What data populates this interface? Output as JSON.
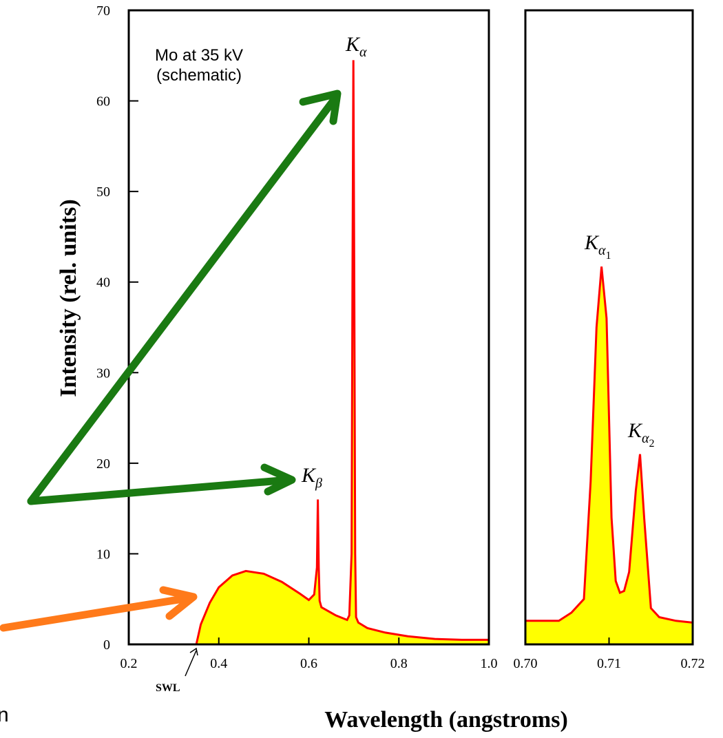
{
  "chart_data": [
    {
      "type": "area",
      "annotation": [
        "Mo at 35 kV",
        "(schematic)"
      ],
      "ylabel": "Intensity (rel. units)",
      "xlim": [
        0.2,
        1.0
      ],
      "ylim": [
        0,
        70
      ],
      "x_ticks": [
        "0.2",
        "0.4",
        "0.6",
        "0.8",
        "1.0"
      ],
      "y_ticks": [
        "0",
        "10",
        "20",
        "30",
        "40",
        "50",
        "60",
        "70"
      ],
      "series": [
        {
          "x": [
            0.35,
            0.36,
            0.38,
            0.4,
            0.43,
            0.46,
            0.5,
            0.54,
            0.58,
            0.6,
            0.612,
            0.618,
            0.62,
            0.622,
            0.624,
            0.628,
            0.635,
            0.66,
            0.685,
            0.69,
            0.695,
            0.697,
            0.699,
            0.701,
            0.703,
            0.705,
            0.71,
            0.73,
            0.77,
            0.82,
            0.88,
            0.94,
            1.0
          ],
          "y": [
            0,
            2.2,
            4.6,
            6.3,
            7.6,
            8.1,
            7.8,
            6.9,
            5.6,
            4.9,
            5.5,
            8.5,
            16.0,
            8.5,
            4.8,
            4.1,
            3.9,
            3.2,
            2.7,
            3.2,
            10.0,
            40.0,
            64.5,
            40.0,
            10.0,
            3.0,
            2.4,
            1.8,
            1.3,
            0.9,
            0.6,
            0.5,
            0.5
          ]
        }
      ],
      "peak_labels": [
        {
          "symbol": "K",
          "sub": "α",
          "subsub": "",
          "x": 0.7
        },
        {
          "symbol": "K",
          "sub": "β",
          "subsub": "",
          "x": 0.62
        }
      ],
      "swl_label": "SWL",
      "swl_x": 0.35
    },
    {
      "type": "area",
      "xlim": [
        0.7,
        0.72
      ],
      "ylim": [
        0,
        70
      ],
      "x_ticks": [
        "0.70",
        "0.71",
        "0.72"
      ],
      "series": [
        {
          "x": [
            0.7,
            0.702,
            0.704,
            0.7055,
            0.707,
            0.7078,
            0.7085,
            0.7091,
            0.7097,
            0.7103,
            0.7108,
            0.7113,
            0.7118,
            0.7124,
            0.7132,
            0.7137,
            0.7142,
            0.715,
            0.716,
            0.718,
            0.72
          ],
          "y": [
            2.6,
            2.6,
            2.6,
            3.5,
            5.0,
            18.0,
            35.0,
            41.7,
            36.0,
            14.0,
            7.0,
            5.7,
            5.9,
            8.0,
            17.0,
            21.0,
            14.0,
            4.0,
            3.0,
            2.6,
            2.4
          ]
        }
      ],
      "peak_labels": [
        {
          "symbol": "K",
          "sub": "α",
          "subsub": "1",
          "x": 0.7091
        },
        {
          "symbol": "K",
          "sub": "α",
          "subsub": "2",
          "x": 0.7137
        }
      ]
    }
  ],
  "shared": {
    "xlabel": "Wavelength (angstroms)",
    "edge_text": "n",
    "colors": {
      "fill": "#ffff00",
      "line": "#ff0000",
      "frame": "#000000",
      "green_arrow": "#1a7a12",
      "orange_arrow": "#ff7a1a"
    }
  }
}
